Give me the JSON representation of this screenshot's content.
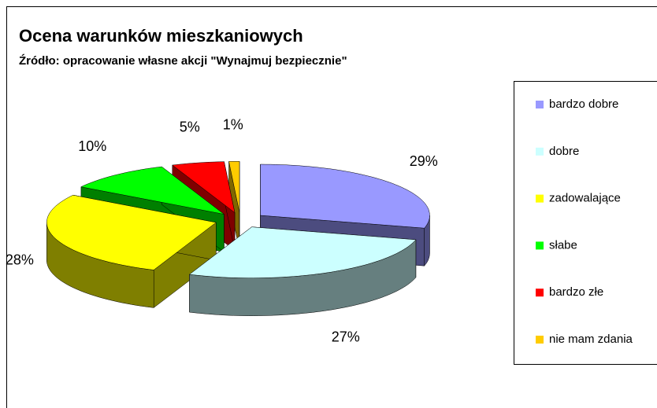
{
  "chart_data": {
    "type": "pie",
    "title": "Ocena warunków mieszkaniowych",
    "subtitle": "Źródło: opracowanie własne akcji \"Wynajmuj bezpiecznie\"",
    "categories": [
      "bardzo dobre",
      "dobre",
      "zadowalające",
      "słabe",
      "bardzo złe",
      "nie mam zdania"
    ],
    "values": [
      29,
      27,
      28,
      10,
      5,
      1
    ],
    "value_labels": [
      "29%",
      "27%",
      "28%",
      "10%",
      "5%",
      "1%"
    ],
    "colors": [
      "#9999ff",
      "#ccffff",
      "#ffff00",
      "#00ff00",
      "#ff0000",
      "#ffcc00"
    ],
    "legend": "right"
  }
}
